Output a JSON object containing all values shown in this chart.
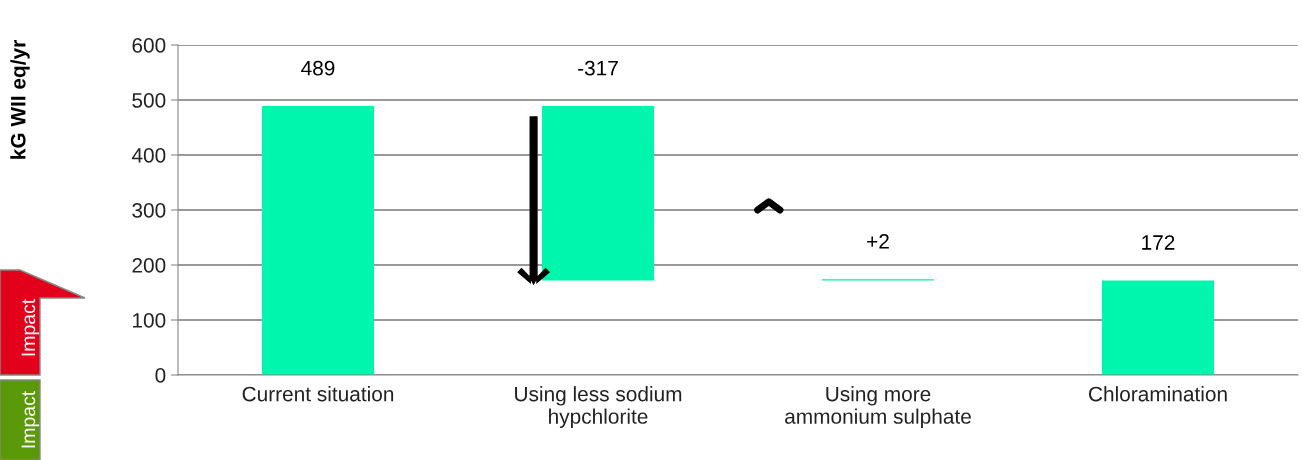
{
  "chart_data": {
    "type": "bar",
    "ylabel": "kG WII eq/yr",
    "categories": [
      "Current situation",
      "Using less sodium\nhypchlorite",
      "Using more\nammonium sulphate",
      "Chloramination"
    ],
    "values": [
      489,
      -317,
      2,
      172
    ],
    "base": [
      0,
      489,
      172,
      0
    ],
    "value_labels": [
      "489",
      "-317",
      "+2",
      "172"
    ],
    "color": "#00f5ad",
    "ylim": [
      0,
      600
    ],
    "yticks": [
      0,
      100,
      200,
      300,
      400,
      500,
      600
    ],
    "grid": "y",
    "annotations": [
      "Impact",
      "Impact"
    ]
  }
}
